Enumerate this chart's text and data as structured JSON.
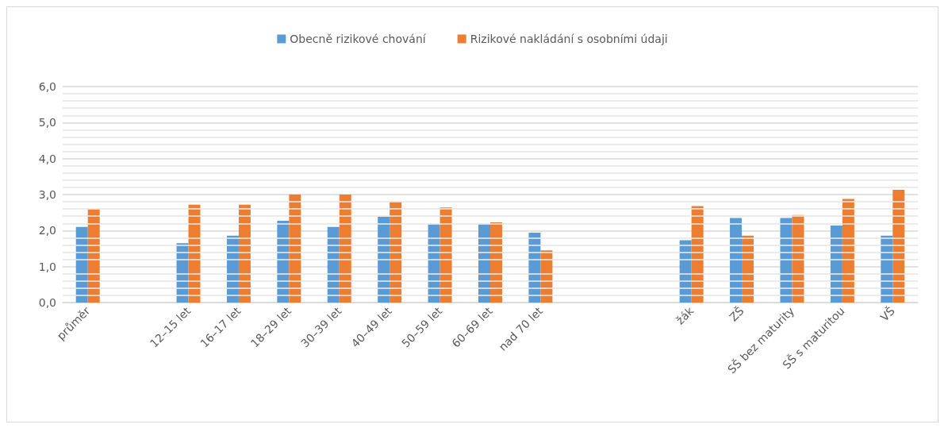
{
  "chart_data": {
    "type": "bar",
    "categories": [
      "průměr",
      null,
      "12–15 let",
      "16–17 let",
      "18–29 let",
      "30–39 let",
      "40–49 let",
      "50–59 let",
      "60–69 let",
      "nad 70 let",
      null,
      null,
      "žák",
      "ZŠ",
      "SŠ bez maturity",
      "SŠ s maturitou",
      "VŠ"
    ],
    "series": [
      {
        "name": "Obecně rizikové chování",
        "color": "#5b9bd5",
        "values": [
          2.1,
          null,
          1.65,
          1.86,
          2.27,
          2.1,
          2.38,
          2.18,
          2.18,
          1.94,
          null,
          null,
          1.73,
          2.35,
          2.35,
          2.14,
          1.86
        ]
      },
      {
        "name": "Rizikové nakládání s osobními údaji",
        "color": "#ed7d31",
        "values": [
          2.6,
          null,
          2.72,
          2.72,
          3.0,
          3.0,
          2.8,
          2.64,
          2.23,
          1.45,
          null,
          null,
          2.68,
          1.86,
          2.43,
          2.88,
          3.13
        ]
      }
    ],
    "ylim": [
      0,
      6
    ],
    "yticks": [
      {
        "value": 0,
        "label": "0,0"
      },
      {
        "value": 0.2,
        "label": null
      },
      {
        "value": 0.4,
        "label": null
      },
      {
        "value": 0.6,
        "label": null
      },
      {
        "value": 0.8,
        "label": null
      },
      {
        "value": 1,
        "label": "1,0"
      },
      {
        "value": 1.2,
        "label": null
      },
      {
        "value": 1.4,
        "label": null
      },
      {
        "value": 1.6,
        "label": null
      },
      {
        "value": 1.8,
        "label": null
      },
      {
        "value": 2,
        "label": "2,0"
      },
      {
        "value": 2.2,
        "label": null
      },
      {
        "value": 2.4,
        "label": null
      },
      {
        "value": 2.6,
        "label": null
      },
      {
        "value": 2.8,
        "label": null
      },
      {
        "value": 3,
        "label": "3,0"
      },
      {
        "value": 3.2,
        "label": null
      },
      {
        "value": 3.4,
        "label": null
      },
      {
        "value": 3.6,
        "label": null
      },
      {
        "value": 3.8,
        "label": null
      },
      {
        "value": 4,
        "label": "4,0"
      },
      {
        "value": 4.2,
        "label": null
      },
      {
        "value": 4.4,
        "label": null
      },
      {
        "value": 4.6,
        "label": null
      },
      {
        "value": 4.8,
        "label": null
      },
      {
        "value": 5,
        "label": "5,0"
      },
      {
        "value": 5.2,
        "label": null
      },
      {
        "value": 5.4,
        "label": null
      },
      {
        "value": 5.6,
        "label": null
      },
      {
        "value": 5.8,
        "label": null
      },
      {
        "value": 6,
        "label": "6,0"
      }
    ],
    "grid": true,
    "legend": "top"
  }
}
